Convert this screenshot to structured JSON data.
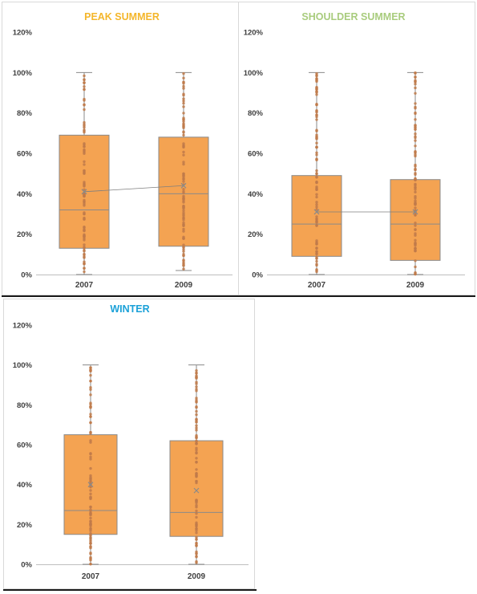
{
  "colors": {
    "box_fill": "#F4A352",
    "box_stroke": "#8a8a8a",
    "point": "#C07A4A",
    "mean_line": "#7f7f7f",
    "axis": "#bfbfbf",
    "tick_text": "#404040"
  },
  "chart_data": [
    {
      "type": "box",
      "title": "PEAK SUMMER",
      "title_color": "#F4B62B",
      "categories": [
        "2007",
        "2009"
      ],
      "ylim": [
        0,
        1.2
      ],
      "yticks": [
        "0%",
        "20%",
        "40%",
        "60%",
        "80%",
        "100%",
        "120%"
      ],
      "grid": false,
      "show_mean_line": true,
      "boxes": [
        {
          "category": "2007",
          "min": 0.0,
          "q1": 0.13,
          "median": 0.32,
          "mean": 0.41,
          "q3": 0.69,
          "max": 1.0
        },
        {
          "category": "2009",
          "min": 0.02,
          "q1": 0.14,
          "median": 0.4,
          "mean": 0.44,
          "q3": 0.68,
          "max": 1.0
        }
      ]
    },
    {
      "type": "box",
      "title": "SHOULDER SUMMER",
      "title_color": "#A9CC7E",
      "categories": [
        "2007",
        "2009"
      ],
      "ylim": [
        0,
        1.2
      ],
      "yticks": [
        "0%",
        "20%",
        "40%",
        "60%",
        "80%",
        "100%",
        "120%"
      ],
      "grid": false,
      "show_mean_line": true,
      "boxes": [
        {
          "category": "2007",
          "min": 0.0,
          "q1": 0.09,
          "median": 0.25,
          "mean": 0.31,
          "q3": 0.49,
          "max": 1.0
        },
        {
          "category": "2009",
          "min": 0.0,
          "q1": 0.07,
          "median": 0.25,
          "mean": 0.31,
          "q3": 0.47,
          "max": 1.0
        }
      ]
    },
    {
      "type": "box",
      "title": "WINTER",
      "title_color": "#1BA1D8",
      "categories": [
        "2007",
        "2009"
      ],
      "ylim": [
        0,
        1.2
      ],
      "yticks": [
        "0%",
        "20%",
        "40%",
        "60%",
        "80%",
        "100%",
        "120%"
      ],
      "grid": false,
      "show_mean_line": false,
      "boxes": [
        {
          "category": "2007",
          "min": 0.0,
          "q1": 0.15,
          "median": 0.27,
          "mean": 0.4,
          "q3": 0.65,
          "max": 1.0
        },
        {
          "category": "2009",
          "min": 0.0,
          "q1": 0.14,
          "median": 0.26,
          "mean": 0.37,
          "q3": 0.62,
          "max": 1.0
        }
      ]
    }
  ]
}
